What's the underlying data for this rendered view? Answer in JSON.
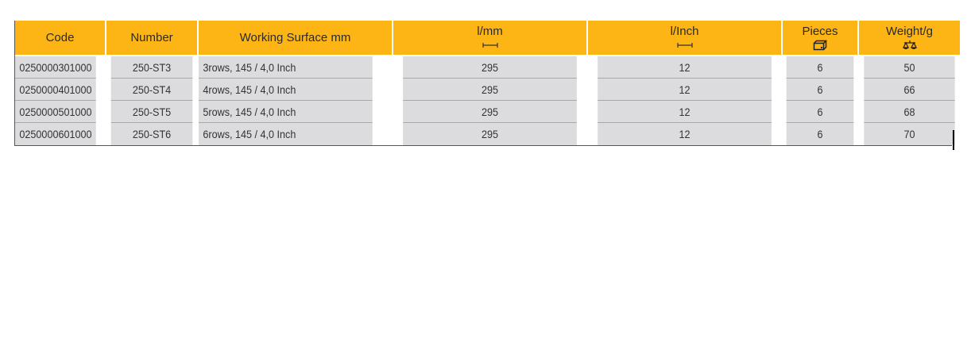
{
  "table": {
    "headers": [
      {
        "label": "Code"
      },
      {
        "label": "Number"
      },
      {
        "label": "Working Surface mm"
      },
      {
        "label": "l/mm",
        "icon": "length-icon"
      },
      {
        "label": "l/Inch",
        "icon": "length-icon"
      },
      {
        "label": "Pieces",
        "icon": "box-icon"
      },
      {
        "label": "Weight/g",
        "icon": "scale-icon"
      }
    ],
    "rows": [
      [
        "0250000301000",
        "250-ST3",
        "3rows, 145 / 4,0 Inch",
        "295",
        "12",
        "6",
        "50"
      ],
      [
        "0250000401000",
        "250-ST4",
        "4rows, 145 / 4,0 Inch",
        "295",
        "12",
        "6",
        "66"
      ],
      [
        "0250000501000",
        "250-ST5",
        "5rows, 145 / 4,0 Inch",
        "295",
        "12",
        "6",
        "68"
      ],
      [
        "0250000601000",
        "250-ST6",
        "6rows, 145 / 4,0 Inch",
        "295",
        "12",
        "6",
        "70"
      ]
    ],
    "colors": {
      "header": "#FDB515",
      "row": "#DCDCDE"
    }
  }
}
